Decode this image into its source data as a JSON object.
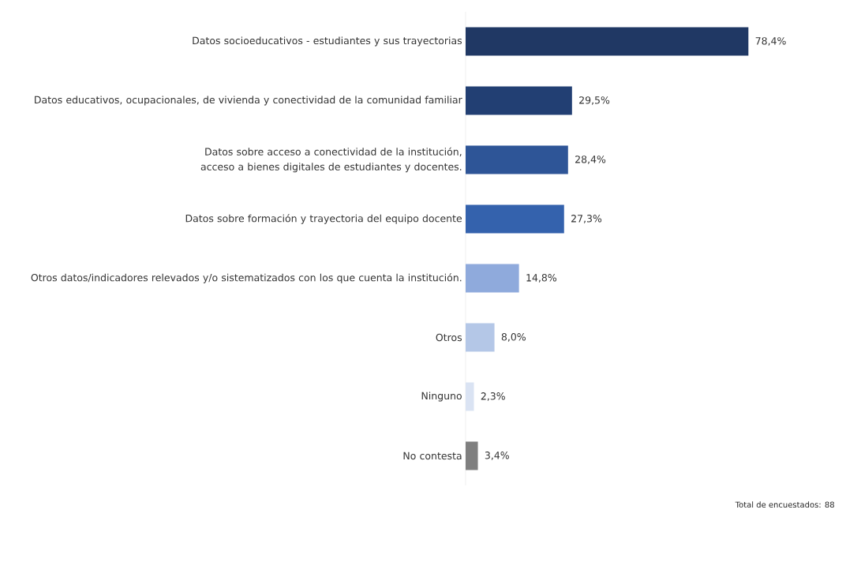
{
  "chart_data": {
    "type": "bar",
    "orientation": "horizontal",
    "categories": [
      "Datos socioeducativos - estudiantes y sus trayectorias",
      "Datos educativos, ocupacionales, de vivienda y conectividad de la comunidad familiar",
      "Datos sobre acceso a conectividad de la institución, acceso a bienes digitales de estudiantes y docentes.",
      "Datos sobre formación y trayectoria del equipo docente",
      "Otros datos/indicadores relevados y/o sistematizados con los que cuenta la institución.",
      "Otros",
      "Ninguno",
      "No contesta"
    ],
    "values": [
      78.4,
      29.5,
      28.4,
      27.3,
      14.8,
      8.0,
      2.3,
      3.4
    ],
    "value_labels": [
      "78,4%",
      "29,5%",
      "28,4%",
      "27,3%",
      "14,8%",
      "8,0%",
      "2,3%",
      "3,4%"
    ],
    "colors": [
      "#203864",
      "#223f73",
      "#2e5597",
      "#3462ad",
      "#8faadc",
      "#b4c7e7",
      "#dae3f3",
      "#7f7f7f"
    ],
    "annotations": [
      "Total de encuestados: 88"
    ]
  }
}
